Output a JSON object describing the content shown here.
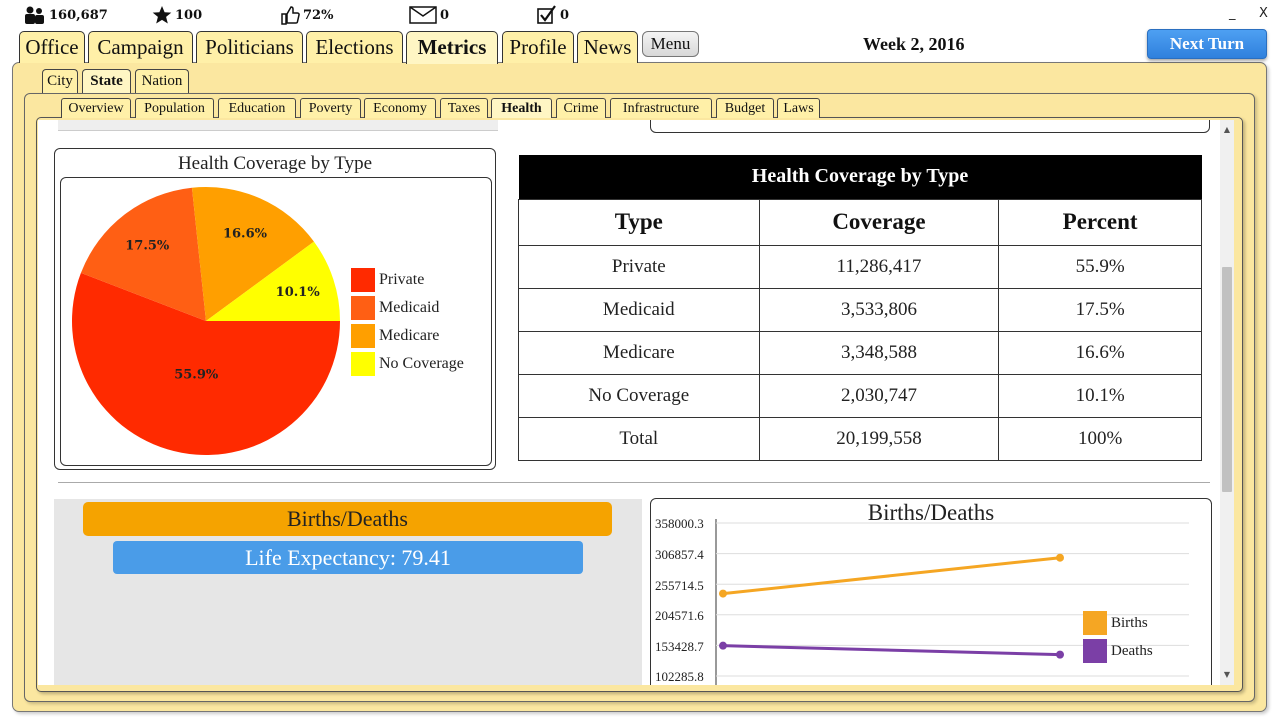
{
  "status": {
    "population": "160,687",
    "stars": "100",
    "approval": "72%",
    "messages": "0",
    "tasks": "0"
  },
  "window": {
    "minimize": "_",
    "close": "X"
  },
  "main_tabs": [
    "Office",
    "Campaign",
    "Politicians",
    "Elections",
    "Metrics",
    "Profile",
    "News"
  ],
  "menu_label": "Menu",
  "week": "Week 2, 2016",
  "next_turn": "Next Turn",
  "region_tabs": [
    "City",
    "State",
    "Nation"
  ],
  "metric_tabs": [
    "Overview",
    "Population",
    "Education",
    "Poverty",
    "Economy",
    "Taxes",
    "Health",
    "Crime",
    "Infrastructure",
    "Budget",
    "Laws"
  ],
  "health_pie": {
    "title": "Health Coverage by Type",
    "legend": [
      "Private",
      "Medicaid",
      "Medicare",
      "No Coverage"
    ],
    "slice_labels": [
      "55.9%",
      "17.5%",
      "16.6%",
      "10.1%"
    ],
    "colors": [
      "#ff2a00",
      "#ff5f14",
      "#ff9f00",
      "#ffff00"
    ]
  },
  "chart_data": {
    "type": "pie",
    "title": "Health Coverage by Type",
    "categories": [
      "Private",
      "Medicaid",
      "Medicare",
      "No Coverage"
    ],
    "values": [
      55.9,
      17.5,
      16.6,
      10.1
    ],
    "legend_position": "right"
  },
  "coverage_table": {
    "caption": "Health Coverage by Type",
    "headers": [
      "Type",
      "Coverage",
      "Percent"
    ],
    "rows": [
      [
        "Private",
        "11,286,417",
        "55.9%"
      ],
      [
        "Medicaid",
        "3,533,806",
        "17.5%"
      ],
      [
        "Medicare",
        "3,348,588",
        "16.6%"
      ],
      [
        "No Coverage",
        "2,030,747",
        "10.1%"
      ],
      [
        "Total",
        "20,199,558",
        "100%"
      ]
    ]
  },
  "births_deaths_panel": {
    "header": "Births/Deaths",
    "life_expectancy": "Life Expectancy: 79.41"
  },
  "births_deaths_chart": {
    "type": "line",
    "title": "Births/Deaths",
    "y_ticks": [
      "358000.3",
      "306857.4",
      "255714.5",
      "204571.6",
      "153428.7",
      "102285.8"
    ],
    "series": [
      {
        "name": "Births",
        "color": "#f5a623",
        "values": [
          240000,
          300000
        ]
      },
      {
        "name": "Deaths",
        "color": "#7b3fa6",
        "values": [
          153000,
          138000
        ]
      }
    ]
  }
}
